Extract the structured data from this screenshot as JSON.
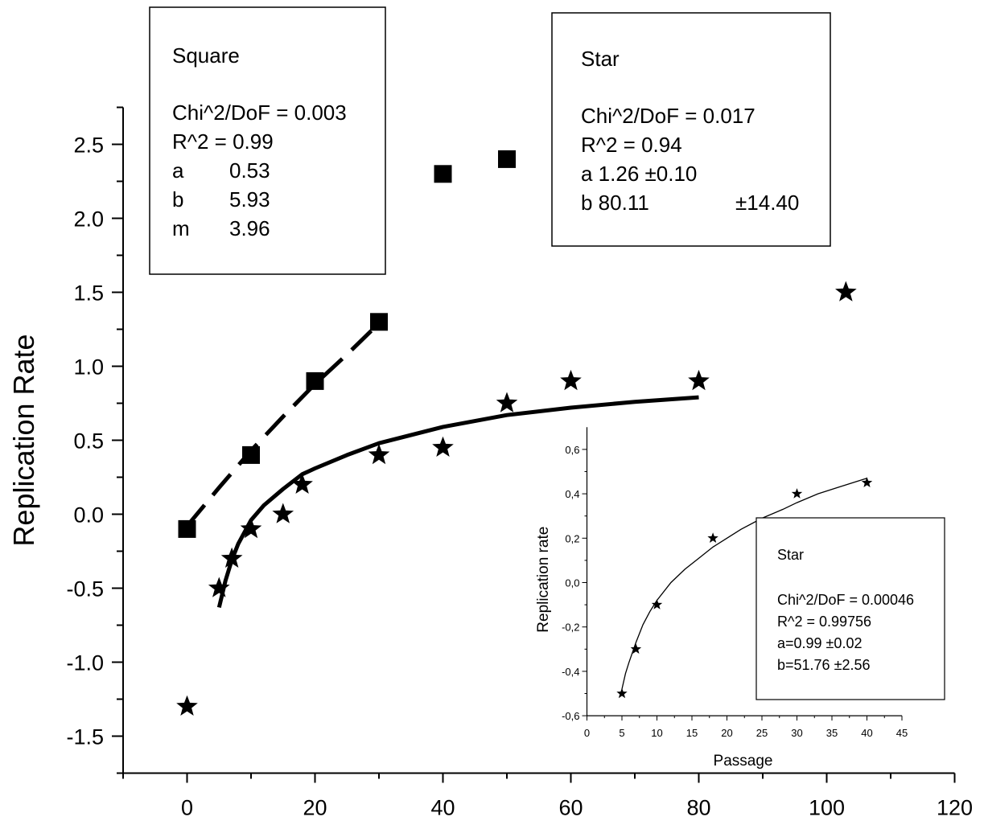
{
  "chart_data": [
    {
      "type": "scatter",
      "xlabel": "",
      "ylabel": "Replication Rate",
      "xlim": [
        -10,
        120
      ],
      "ylim": [
        -1.75,
        2.75
      ],
      "x_ticks": [
        "0",
        "20",
        "40",
        "60",
        "80",
        "100",
        "120"
      ],
      "y_ticks": [
        "-1.5",
        "-1.0",
        "-0.5",
        "0.0",
        "0.5",
        "1.0",
        "1.5",
        "2.0",
        "2.5"
      ],
      "series": [
        {
          "name": "Square",
          "marker": "square",
          "x": [
            0,
            10,
            20,
            30,
            40,
            50
          ],
          "y": [
            -0.1,
            0.4,
            0.9,
            1.3,
            2.3,
            2.4
          ],
          "fit": {
            "style": "dashed",
            "x": [
              0,
              5,
              10,
              15,
              20,
              25,
              30
            ],
            "y": [
              -0.08,
              0.18,
              0.43,
              0.66,
              0.88,
              1.08,
              1.29
            ]
          }
        },
        {
          "name": "Star",
          "marker": "star",
          "x": [
            0,
            5,
            7,
            10,
            15,
            18,
            30,
            40,
            50,
            60,
            80,
            103
          ],
          "y": [
            -1.3,
            -0.5,
            -0.3,
            -0.1,
            0.0,
            0.2,
            0.4,
            0.45,
            0.75,
            0.9,
            0.9,
            1.5
          ],
          "fit": {
            "style": "solid",
            "x": [
              5,
              6,
              7,
              8,
              10,
              12,
              15,
              18,
              20,
              25,
              30,
              40,
              50,
              60,
              70,
              80
            ],
            "y": [
              -0.63,
              -0.45,
              -0.31,
              -0.2,
              -0.04,
              0.06,
              0.17,
              0.27,
              0.31,
              0.4,
              0.48,
              0.59,
              0.67,
              0.72,
              0.76,
              0.79
            ]
          }
        }
      ],
      "fit_boxes": [
        {
          "title": "Square",
          "lines": [
            "Chi^2/DoF  = 0.003",
            "R^2    =  0.99"
          ],
          "params": [
            [
              "a",
              "0.53"
            ],
            [
              "b",
              "5.93"
            ],
            [
              "m",
              "3.96"
            ]
          ]
        },
        {
          "title": "Star",
          "lines": [
            "Chi^2/DoF = 0.017",
            "R^2 =  0.94",
            "a 1.26  ±0.10"
          ],
          "params": [
            [
              "b 80.11",
              "±14.40"
            ]
          ]
        }
      ]
    },
    {
      "type": "scatter",
      "xlabel": "Passage",
      "ylabel": "Replication rate",
      "xlim": [
        0,
        45
      ],
      "ylim": [
        -0.6,
        0.7
      ],
      "x_ticks": [
        "0",
        "5",
        "10",
        "15",
        "20",
        "25",
        "30",
        "35",
        "40",
        "45"
      ],
      "y_ticks": [
        "-0,6",
        "-0,4",
        "-0,2",
        "0,0",
        "0,2",
        "0,4",
        "0,6"
      ],
      "series": [
        {
          "name": "Star",
          "marker": "star",
          "x": [
            5,
            7,
            10,
            18,
            30,
            40
          ],
          "y": [
            -0.5,
            -0.3,
            -0.1,
            0.2,
            0.4,
            0.45
          ],
          "fit": {
            "style": "solid",
            "x": [
              5,
              5.5,
              6,
              7,
              8,
              9,
              10,
              12,
              14,
              16,
              18,
              20,
              22,
              25,
              28,
              30,
              33,
              36,
              38,
              40
            ],
            "y": [
              -0.48,
              -0.41,
              -0.36,
              -0.27,
              -0.19,
              -0.13,
              -0.08,
              0.0,
              0.06,
              0.11,
              0.16,
              0.2,
              0.24,
              0.29,
              0.33,
              0.36,
              0.4,
              0.43,
              0.45,
              0.47
            ]
          }
        }
      ],
      "fit_boxes": [
        {
          "title": "Star",
          "lines": [
            "Chi^2/DoF = 0.00046",
            "R^2 = 0.99756",
            "a=0.99 ±0.02",
            "b=51.76 ±2.56"
          ],
          "params": []
        }
      ]
    }
  ]
}
